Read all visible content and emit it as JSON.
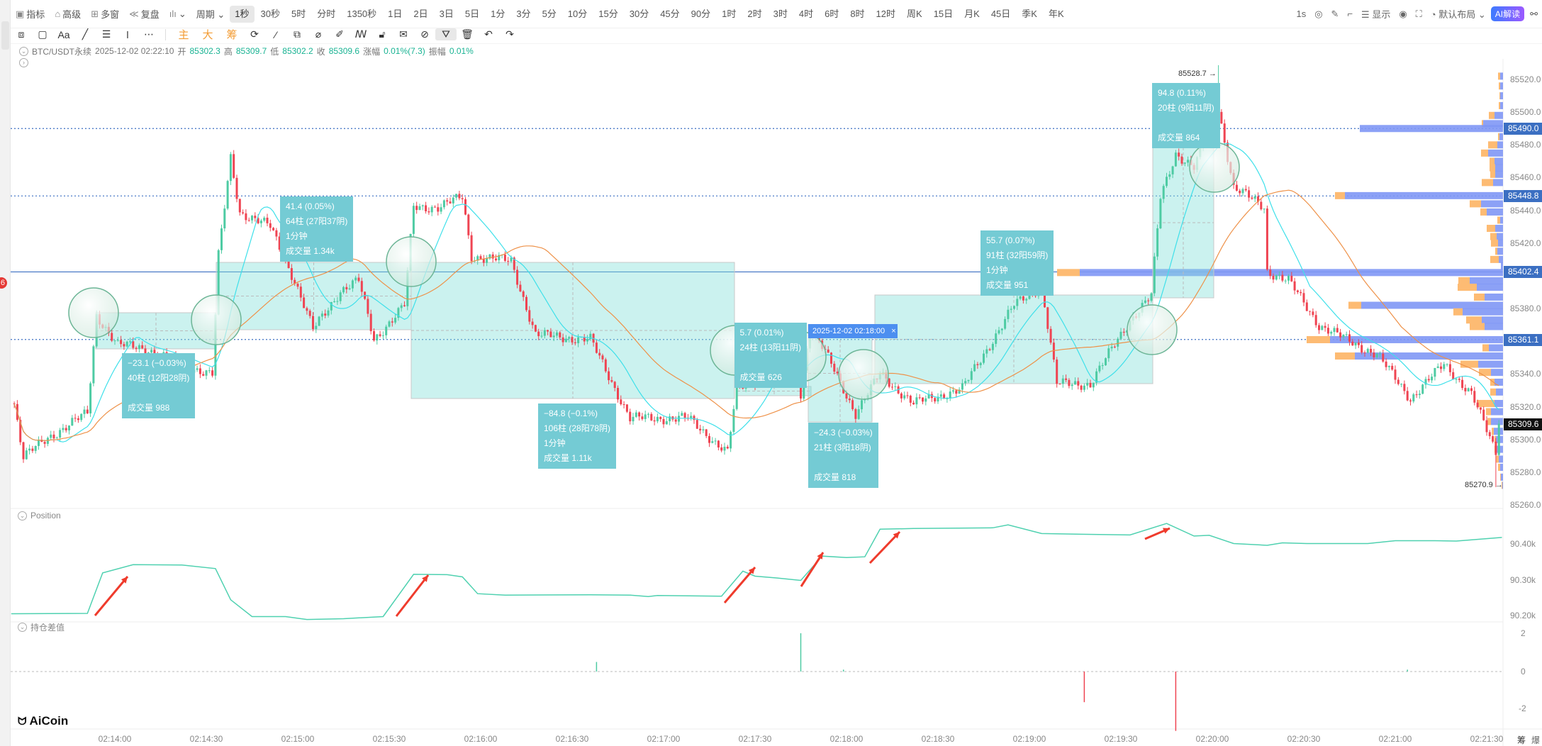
{
  "toolbar": {
    "left_items": [
      {
        "icon": "chart-box-icon",
        "glyph": "▣",
        "label": "指标"
      },
      {
        "icon": "advanced-icon",
        "glyph": "⌂",
        "label": "高级"
      },
      {
        "icon": "multi-window-icon",
        "glyph": "⊞",
        "label": "多窗"
      },
      {
        "icon": "replay-icon",
        "glyph": "≪",
        "label": "复盘"
      },
      {
        "icon": "candle-type-icon",
        "glyph": "ılı",
        "label": "⌄"
      },
      {
        "icon": "period-icon",
        "glyph": "",
        "label": "周期 ⌄"
      }
    ],
    "timeframes": [
      "1秒",
      "30秒",
      "5时",
      "分时",
      "1350秒",
      "1日",
      "2日",
      "3日",
      "5日",
      "1分",
      "3分",
      "5分",
      "10分",
      "15分",
      "30分",
      "45分",
      "90分",
      "1时",
      "2时",
      "3时",
      "4时",
      "6时",
      "8时",
      "12时",
      "周K",
      "15日",
      "月K",
      "45日",
      "季K",
      "年K"
    ],
    "active_timeframe": "1秒",
    "right_items": [
      {
        "icon": "interval-label",
        "label": "1s"
      },
      {
        "icon": "camera-icon",
        "label": "◎"
      },
      {
        "icon": "pen-icon",
        "label": "✎"
      },
      {
        "icon": "crop-icon",
        "label": "⌐"
      },
      {
        "icon": "display-icon",
        "label": "☰ 显示"
      },
      {
        "icon": "target-icon",
        "label": "◉"
      },
      {
        "icon": "fullscreen-icon",
        "label": "⛶"
      },
      {
        "icon": "layout-icon",
        "label": "◔ 默认布局 ⌄"
      }
    ],
    "ai_label": "AI解读",
    "share_icon": "share-icon"
  },
  "drawing_toolbar": {
    "tools_a": [
      {
        "icon": "screenshot-icon",
        "glyph": "⧈"
      },
      {
        "icon": "rectangle-icon",
        "glyph": "▢"
      },
      {
        "icon": "text-icon",
        "glyph": "Aa"
      },
      {
        "icon": "line-icon",
        "glyph": "╱"
      },
      {
        "icon": "menu-lines-icon",
        "glyph": "☰"
      },
      {
        "icon": "vertical-line-icon",
        "glyph": "ǀ"
      },
      {
        "icon": "more-icon",
        "glyph": "⋯"
      }
    ],
    "orange_labels": [
      "主",
      "大",
      "筹"
    ],
    "tools_b": [
      {
        "icon": "refresh-icon",
        "glyph": "⟳"
      },
      {
        "icon": "magnet-icon",
        "glyph": "⁄"
      },
      {
        "icon": "copy-icon",
        "glyph": "⧉"
      },
      {
        "icon": "ruler-icon",
        "glyph": "⌀"
      },
      {
        "icon": "eraser-icon",
        "glyph": "✐"
      },
      {
        "icon": "pattern-icon",
        "glyph": "ꟿ"
      },
      {
        "icon": "lock-icon",
        "glyph": "🔓︎"
      },
      {
        "icon": "note-icon",
        "glyph": "✉"
      },
      {
        "icon": "link-icon",
        "glyph": "⊘"
      },
      {
        "icon": "filter-icon",
        "glyph": "⛛",
        "selected": true
      },
      {
        "icon": "trash-icon",
        "glyph": "🗑︎"
      },
      {
        "icon": "undo-icon",
        "glyph": "↶"
      },
      {
        "icon": "redo-icon",
        "glyph": "↷"
      }
    ]
  },
  "info": {
    "symbol": "BTC/USDT永续",
    "datetime": "2025-12-02 02:22:10",
    "open_label": "开",
    "open": "85302.3",
    "high_label": "高",
    "high": "85309.7",
    "low_label": "低",
    "low": "85302.2",
    "close_label": "收",
    "close": "85309.6",
    "change_label": "涨幅",
    "change": "0.01%(7.3)",
    "amplitude_label": "振幅",
    "amplitude": "0.01%"
  },
  "colors": {
    "up": "#4ecba3",
    "down": "#ef4452",
    "ma_fast": "#3ee0ea",
    "ma_slow": "#ee9148",
    "line_blue": "#3b6fc2",
    "profile_blue": "#7f97f5",
    "profile_orange": "#fdbb73",
    "position_line": "#4fd1b0",
    "arrow": "#ef3b2c"
  },
  "chart_data": [
    {
      "type": "candlestick",
      "interval": "1s",
      "ylim": [
        85255,
        85533
      ],
      "y_ticks": [
        85260,
        85280,
        85300,
        85320,
        85340,
        85360,
        85380,
        85400,
        85420,
        85440,
        85460,
        85480,
        85500,
        85520
      ],
      "x_ticks": [
        "02:14:00",
        "02:14:30",
        "02:15:00",
        "02:15:30",
        "02:16:00",
        "02:16:30",
        "02:17:00",
        "02:17:30",
        "02:18:00",
        "02:18:30",
        "02:19:00",
        "02:19:30",
        "02:20:00",
        "02:20:30",
        "02:21:00",
        "02:21:30"
      ],
      "price_path": [
        [
          "02:13:27",
          85322
        ],
        [
          "02:13:30",
          85289
        ],
        [
          "02:13:38",
          85301
        ],
        [
          "02:13:51",
          85316
        ],
        [
          "02:13:54",
          85376
        ],
        [
          "02:14:01",
          85358
        ],
        [
          "02:14:11",
          85355
        ],
        [
          "02:14:22",
          85346
        ],
        [
          "02:14:32",
          85340
        ],
        [
          "02:14:34",
          85412
        ],
        [
          "02:14:38",
          85472
        ],
        [
          "02:14:41",
          85439
        ],
        [
          "02:14:51",
          85430
        ],
        [
          "02:14:59",
          85397
        ],
        [
          "02:15:05",
          85367
        ],
        [
          "02:15:14",
          85391
        ],
        [
          "02:15:20",
          85397
        ],
        [
          "02:15:25",
          85361
        ],
        [
          "02:15:35",
          85382
        ],
        [
          "02:15:38",
          85442
        ],
        [
          "02:15:46",
          85442
        ],
        [
          "02:15:54",
          85448
        ],
        [
          "02:15:57",
          85412
        ],
        [
          "02:16:10",
          85409
        ],
        [
          "02:16:18",
          85364
        ],
        [
          "02:16:36",
          85361
        ],
        [
          "02:16:49",
          85313
        ],
        [
          "02:17:08",
          85313
        ],
        [
          "02:17:21",
          85292
        ],
        [
          "02:17:24",
          85331
        ],
        [
          "02:17:31",
          85337
        ],
        [
          "02:17:42",
          85352
        ],
        [
          "02:17:45",
          85328
        ],
        [
          "02:17:48",
          85370
        ],
        [
          "02:17:55",
          85346
        ],
        [
          "02:18:03",
          85316
        ],
        [
          "02:18:11",
          85340
        ],
        [
          "02:18:22",
          85322
        ],
        [
          "02:18:38",
          85331
        ],
        [
          "02:18:55",
          85382
        ],
        [
          "02:19:04",
          85394
        ],
        [
          "02:19:09",
          85334
        ],
        [
          "02:19:20",
          85334
        ],
        [
          "02:19:33",
          85373
        ],
        [
          "02:19:40",
          85388
        ],
        [
          "02:19:43",
          85448
        ],
        [
          "02:19:48",
          85475
        ],
        [
          "02:19:54",
          85466
        ],
        [
          "02:20:02",
          85502
        ],
        [
          "02:20:07",
          85454
        ],
        [
          "02:20:17",
          85442
        ],
        [
          "02:20:18",
          85403
        ],
        [
          "02:20:25",
          85397
        ],
        [
          "02:20:35",
          85370
        ],
        [
          "02:20:44",
          85361
        ],
        [
          "02:20:54",
          85352
        ],
        [
          "02:21:05",
          85325
        ],
        [
          "02:21:16",
          85346
        ],
        [
          "02:21:25",
          85328
        ],
        [
          "02:21:33",
          85292
        ],
        [
          "02:21:34",
          85309.6
        ]
      ],
      "max": {
        "time": "02:20:02",
        "price": 85528.7,
        "label": "85528.7"
      },
      "min": {
        "time": "02:21:33",
        "price": 85270.9,
        "label": "85270.9"
      },
      "last_price": {
        "price": 85309.6,
        "label": "85309.6"
      },
      "moving_averages": [
        {
          "color": "#3ee0ea"
        },
        {
          "color": "#ee9148"
        }
      ],
      "horizontal_lines": [
        {
          "price": 85490.0,
          "label": "85490.0",
          "style": "dotted"
        },
        {
          "price": 85448.8,
          "label": "85448.8",
          "style": "dotted"
        },
        {
          "price": 85402.4,
          "label": "85402.4",
          "style": "solid"
        },
        {
          "price": 85361.1,
          "label": "85361.1",
          "style": "dotted"
        }
      ],
      "volume_profile": [
        [
          85522,
          3,
          4
        ],
        [
          85516,
          2,
          4
        ],
        [
          85510,
          1,
          4
        ],
        [
          85504,
          2,
          4
        ],
        [
          85498,
          8,
          12
        ],
        [
          85493,
          2,
          28
        ],
        [
          85490,
          0,
          202
        ],
        [
          85485,
          2,
          5
        ],
        [
          85480,
          13,
          8
        ],
        [
          85475,
          10,
          21
        ],
        [
          85470,
          7,
          12
        ],
        [
          85466,
          8,
          11
        ],
        [
          85462,
          7,
          11
        ],
        [
          85457,
          16,
          14
        ],
        [
          85449,
          14,
          223
        ],
        [
          85444,
          16,
          31
        ],
        [
          85439,
          9,
          23
        ],
        [
          85434,
          4,
          4
        ],
        [
          85429,
          12,
          11
        ],
        [
          85424,
          9,
          9
        ],
        [
          85420,
          10,
          7
        ],
        [
          85415,
          3,
          8
        ],
        [
          85410,
          12,
          6
        ],
        [
          85406,
          0,
          3
        ],
        [
          85402,
          32,
          597
        ],
        [
          85397,
          16,
          47
        ],
        [
          85393,
          27,
          37
        ],
        [
          85387,
          15,
          26
        ],
        [
          85382,
          18,
          200
        ],
        [
          85378,
          13,
          57
        ],
        [
          85373,
          22,
          30
        ],
        [
          85369,
          21,
          26
        ],
        [
          85361,
          33,
          244
        ],
        [
          85356,
          9,
          20
        ],
        [
          85351,
          28,
          209
        ],
        [
          85346,
          25,
          35
        ],
        [
          85341,
          17,
          17
        ],
        [
          85335,
          6,
          12
        ],
        [
          85329,
          8,
          10
        ],
        [
          85322,
          25,
          12
        ],
        [
          85317,
          7,
          17
        ],
        [
          85311,
          5,
          17
        ],
        [
          85305,
          3,
          13
        ],
        [
          85300,
          2,
          10
        ],
        [
          85294,
          3,
          9
        ],
        [
          85288,
          4,
          6
        ],
        [
          85283,
          3,
          4
        ],
        [
          85277,
          1,
          3
        ],
        [
          85272,
          1,
          1
        ]
      ],
      "measurements": [
        {
          "lines": [
            "−23.1 (−0.03%)",
            "40柱 (12阳28阴)",
            "",
            "成交量 988"
          ]
        },
        {
          "lines": [
            "41.4 (0.05%)",
            "64柱 (27阳37阴)",
            "1分钟",
            "成交量 1.34k"
          ]
        },
        {
          "lines": [
            "−84.8 (−0.1%)",
            "106柱 (28阳78阴)",
            "1分钟",
            "成交量 1.11k"
          ]
        },
        {
          "lines": [
            "5.7 (0.01%)",
            "24柱 (13阳11阴)",
            "",
            "成交量 626"
          ]
        },
        {
          "lines": [
            "−24.3 (−0.03%)",
            "21柱 (3阳18阴)",
            "",
            "成交量 818"
          ]
        },
        {
          "lines": [
            "55.7 (0.07%)",
            "91柱 (32阳59阴)",
            "1分钟",
            "成交量 951"
          ]
        },
        {
          "lines": [
            "94.8 (0.11%)",
            "20柱 (9阳11阴)",
            "",
            "成交量 864"
          ]
        }
      ],
      "crosshair_time_label": "2025-12-02 02:18:00",
      "crosshair_close": "×"
    },
    {
      "type": "line",
      "title": "Position",
      "unit": "k",
      "y_ticks": [
        "90.40k",
        "90.30k",
        "90.20k"
      ],
      "ylim": [
        90.18,
        90.46
      ],
      "points": [
        [
          "02:13:26",
          90.205
        ],
        [
          "02:13:51",
          90.206
        ],
        [
          "02:13:56",
          90.319
        ],
        [
          "02:14:06",
          90.342
        ],
        [
          "02:14:22",
          90.341
        ],
        [
          "02:14:33",
          90.331
        ],
        [
          "02:14:38",
          90.244
        ],
        [
          "02:14:45",
          90.197
        ],
        [
          "02:14:56",
          90.197
        ],
        [
          "02:15:03",
          90.189
        ],
        [
          "02:15:15",
          90.191
        ],
        [
          "02:15:28",
          90.197
        ],
        [
          "02:15:38",
          90.315
        ],
        [
          "02:15:49",
          90.314
        ],
        [
          "02:15:54",
          90.308
        ],
        [
          "02:15:59",
          90.261
        ],
        [
          "02:16:08",
          90.257
        ],
        [
          "02:16:36",
          90.258
        ],
        [
          "02:16:49",
          90.257
        ],
        [
          "02:16:55",
          90.253
        ],
        [
          "02:16:58",
          90.256
        ],
        [
          "02:17:19",
          90.254
        ],
        [
          "02:17:26",
          90.324
        ],
        [
          "02:17:30",
          90.31
        ],
        [
          "02:17:37",
          90.305
        ],
        [
          "02:17:45",
          90.298
        ],
        [
          "02:17:52",
          90.366
        ],
        [
          "02:18:00",
          90.362
        ],
        [
          "02:18:06",
          90.364
        ],
        [
          "02:18:11",
          90.441
        ],
        [
          "02:18:22",
          90.443
        ],
        [
          "02:18:48",
          90.445
        ],
        [
          "02:18:53",
          90.453
        ],
        [
          "02:19:04",
          90.429
        ],
        [
          "02:19:17",
          90.427
        ],
        [
          "02:19:33",
          90.425
        ],
        [
          "02:19:45",
          90.457
        ],
        [
          "02:19:54",
          90.422
        ],
        [
          "02:19:59",
          90.424
        ],
        [
          "02:20:07",
          90.401
        ],
        [
          "02:20:18",
          90.396
        ],
        [
          "02:20:23",
          90.403
        ],
        [
          "02:20:31",
          90.401
        ],
        [
          "02:20:51",
          90.401
        ],
        [
          "02:21:00",
          90.409
        ],
        [
          "02:21:13",
          90.409
        ],
        [
          "02:21:20",
          90.408
        ],
        [
          "02:21:35",
          90.418
        ]
      ]
    },
    {
      "type": "bar",
      "title": "持仓差值",
      "y_ticks": [
        "2",
        "0",
        "-2"
      ],
      "ylim": [
        -3.3,
        2.3
      ],
      "points": [
        [
          "02:16:38",
          0.5
        ],
        [
          "02:17:45",
          2.0
        ],
        [
          "02:17:59",
          0.1
        ],
        [
          "02:19:18",
          -1.6
        ],
        [
          "02:19:48",
          -3.1
        ],
        [
          "02:21:04",
          0.1
        ]
      ]
    }
  ],
  "footer": {
    "logo": "AiCoin",
    "right_buttons": [
      "筹",
      "爆"
    ]
  }
}
